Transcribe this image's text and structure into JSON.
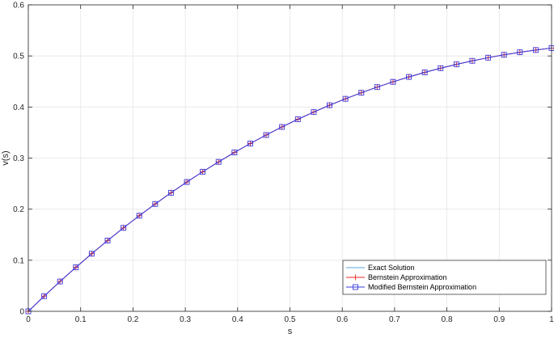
{
  "chart_data": {
    "type": "line",
    "title": "",
    "xlabel": "s",
    "ylabel": "v(s)",
    "xlim": [
      0,
      1
    ],
    "ylim": [
      0,
      0.6
    ],
    "x_ticks": [
      "0",
      "0.1",
      "0.2",
      "0.3",
      "0.4",
      "0.5",
      "0.6",
      "0.7",
      "0.8",
      "0.9",
      "1"
    ],
    "y_ticks": [
      "0",
      "0.1",
      "0.2",
      "0.3",
      "0.4",
      "0.5",
      "0.6"
    ],
    "grid": true,
    "legend_position": "bottom-right",
    "x": [
      0,
      0.0303,
      0.0606,
      0.0909,
      0.1212,
      0.1515,
      0.1818,
      0.2121,
      0.2424,
      0.2727,
      0.303,
      0.3333,
      0.3636,
      0.3939,
      0.4242,
      0.4545,
      0.4848,
      0.5152,
      0.5455,
      0.5758,
      0.6061,
      0.6364,
      0.6667,
      0.697,
      0.7273,
      0.7576,
      0.7879,
      0.8182,
      0.8485,
      0.8788,
      0.9091,
      0.9394,
      0.9697,
      1.0
    ],
    "series": [
      {
        "name": "Exact Solution",
        "color": "#5aa6dc",
        "marker": "none",
        "values": [
          0,
          0.0297,
          0.0584,
          0.0861,
          0.1128,
          0.1386,
          0.1634,
          0.1872,
          0.2101,
          0.2321,
          0.2532,
          0.2733,
          0.2926,
          0.311,
          0.3285,
          0.3452,
          0.361,
          0.376,
          0.3901,
          0.4035,
          0.4161,
          0.4279,
          0.439,
          0.4493,
          0.4589,
          0.4678,
          0.476,
          0.4835,
          0.4904,
          0.4966,
          0.5022,
          0.5072,
          0.5116,
          0.5154
        ]
      },
      {
        "name": "Bernstein Approximation",
        "color": "#e8251f",
        "marker": "plus",
        "values": [
          0,
          0.0297,
          0.0584,
          0.0861,
          0.1128,
          0.1386,
          0.1634,
          0.1872,
          0.2101,
          0.2321,
          0.2532,
          0.2733,
          0.2926,
          0.311,
          0.3285,
          0.3452,
          0.361,
          0.376,
          0.3901,
          0.4035,
          0.4161,
          0.4279,
          0.439,
          0.4493,
          0.4589,
          0.4678,
          0.476,
          0.4835,
          0.4904,
          0.4966,
          0.5022,
          0.5072,
          0.5116,
          0.5154
        ]
      },
      {
        "name": "Modified Bernstein Approximation",
        "color": "#3b3bdf",
        "marker": "square",
        "values": [
          0,
          0.0297,
          0.0584,
          0.0861,
          0.1128,
          0.1386,
          0.1634,
          0.1872,
          0.2101,
          0.2321,
          0.2532,
          0.2733,
          0.2926,
          0.311,
          0.3285,
          0.3452,
          0.361,
          0.376,
          0.3901,
          0.4035,
          0.4161,
          0.4279,
          0.439,
          0.4493,
          0.4589,
          0.4678,
          0.476,
          0.4835,
          0.4904,
          0.4966,
          0.5022,
          0.5072,
          0.5116,
          0.5154
        ]
      }
    ]
  }
}
